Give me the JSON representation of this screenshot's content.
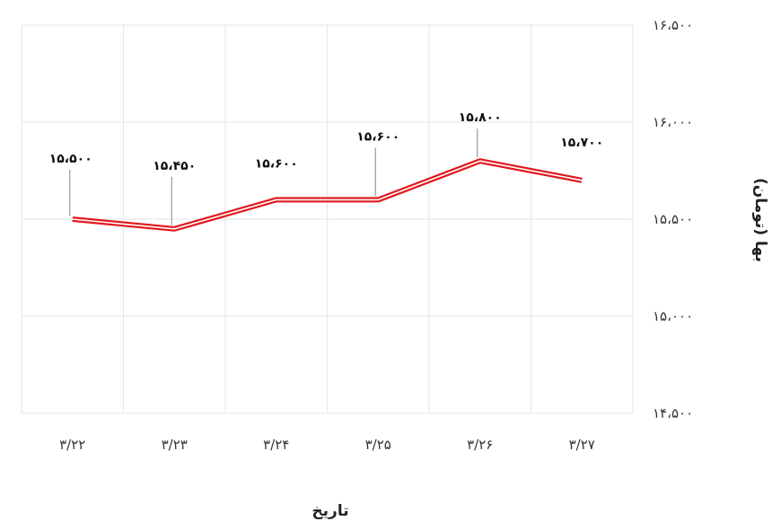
{
  "chart_data": {
    "type": "line",
    "xlabel": "تاریخ",
    "ylabel": "بها (تومان)",
    "categories": [
      "۳/۲۲",
      "۳/۲۳",
      "۳/۲۴",
      "۳/۲۵",
      "۳/۲۶",
      "۳/۲۷"
    ],
    "series": [
      {
        "values": [
          15500,
          15450,
          15600,
          15600,
          15800,
          15700
        ],
        "color": "#e0191e",
        "data_labels": [
          "۱۵،۵۰۰",
          "۱۵،۴۵۰",
          "۱۵،۶۰۰",
          "۱۵،۶۰۰",
          "۱۵،۸۰۰",
          "۱۵،۷۰۰"
        ]
      }
    ],
    "ylim": [
      14500,
      16500
    ],
    "yticks": [
      14500,
      15000,
      15500,
      16000,
      16500
    ],
    "ytick_labels": [
      "۱۴،۵۰۰",
      "۱۵،۰۰۰",
      "۱۵،۵۰۰",
      "۱۶،۰۰۰",
      "۱۶،۵۰۰"
    ],
    "y_axis_side": "right",
    "grid": true,
    "legend": false
  }
}
